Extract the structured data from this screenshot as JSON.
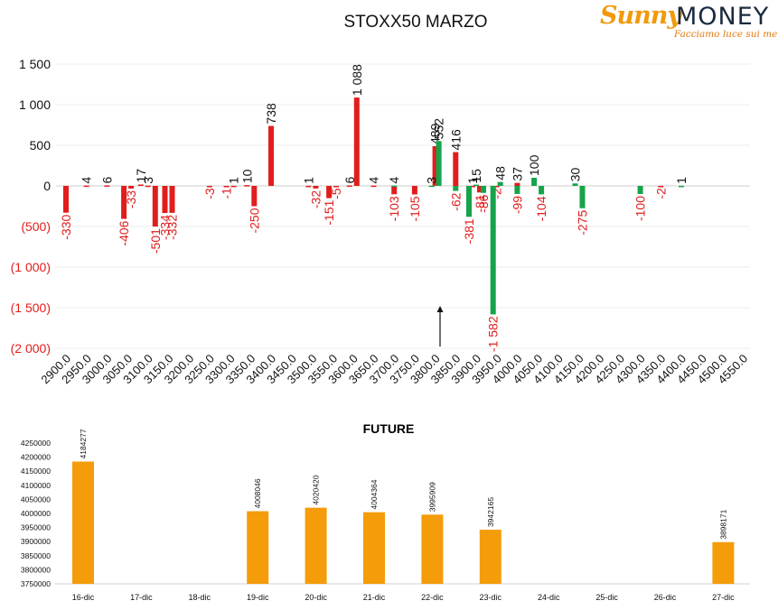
{
  "colors": {
    "positive": "#16a34a",
    "negative": "#e11d1d",
    "future": "#f59c0b",
    "logo_sunny": "#f29a0b",
    "logo_money": "#1a2a40"
  },
  "logo": {
    "sunny": "Sunny",
    "money": "MONEY",
    "tagline": "Facciamo luce sui mercati"
  },
  "chart_data": [
    {
      "type": "bar",
      "title": "STOXX50 MARZO",
      "ylim": [
        -2000,
        1500
      ],
      "yticks": [
        -2000,
        -1500,
        -1000,
        -500,
        0,
        500,
        1000,
        1500
      ],
      "ytick_labels": [
        "(2 000)",
        "(1 500)",
        "(1 000)",
        "(500)",
        "0",
        "500",
        "1 000",
        "1 500"
      ],
      "categories": [
        "2900.0",
        "2950.0",
        "3000.0",
        "3050.0",
        "3100.0",
        "3150.0",
        "3200.0",
        "3250.0",
        "3300.0",
        "3350.0",
        "3400.0",
        "3450.0",
        "3500.0",
        "3550.0",
        "3600.0",
        "3650.0",
        "3700.0",
        "3750.0",
        "3800.0",
        "3850.0",
        "3900.0",
        "3950.0",
        "4000.0",
        "4050.0",
        "4100.0",
        "4150.0",
        "4200.0",
        "4250.0",
        "4300.0",
        "4350.0",
        "4400.0",
        "4450.0",
        "4500.0",
        "4550.0"
      ],
      "series": [
        {
          "color": "negative",
          "points": [
            {
              "x": "2900.0",
              "value": -330,
              "label": "-330"
            },
            {
              "x": "2950.0",
              "value": 4,
              "label": "4"
            },
            {
              "x": "3000.0",
              "value": 6,
              "label": "6"
            },
            {
              "x": "3050.0",
              "value": -406,
              "label": "-406"
            },
            {
              "x": "3050.0",
              "value": -33,
              "label": "-33"
            },
            {
              "x": "3100.0",
              "value": 17,
              "label": "17"
            },
            {
              "x": "3100.0",
              "value": 3,
              "label": "3"
            },
            {
              "x": "3100.0",
              "value": -501,
              "label": "-501"
            },
            {
              "x": "3150.0",
              "value": -334,
              "label": "-334"
            },
            {
              "x": "3150.0",
              "value": -332,
              "label": "-332"
            },
            {
              "x": "3250.0",
              "value": -3,
              "label": "-3"
            },
            {
              "x": "3300.0",
              "value": -1,
              "label": "-1"
            },
            {
              "x": "3300.0",
              "value": 1,
              "label": "1"
            },
            {
              "x": "3350.0",
              "value": 10,
              "label": "10"
            },
            {
              "x": "3350.0",
              "value": -250,
              "label": "-250"
            },
            {
              "x": "3400.0",
              "value": 738,
              "label": "738"
            },
            {
              "x": "3500.0",
              "value": 1,
              "label": "1"
            },
            {
              "x": "3500.0",
              "value": -32,
              "label": "-32"
            },
            {
              "x": "3550.0",
              "value": -151,
              "label": "-151"
            },
            {
              "x": "3550.0",
              "value": -5,
              "label": "-5"
            },
            {
              "x": "3600.0",
              "value": 6,
              "label": "6"
            },
            {
              "x": "3600.0",
              "value": 1088,
              "label": "1 088"
            },
            {
              "x": "3650.0",
              "value": 4,
              "label": "4"
            },
            {
              "x": "3700.0",
              "value": -103,
              "label": "-103"
            },
            {
              "x": "3750.0",
              "value": -105,
              "label": "-105"
            },
            {
              "x": "3800.0",
              "value": 489,
              "label": "489"
            },
            {
              "x": "3850.0",
              "value": 416,
              "label": "416"
            },
            {
              "x": "3900.0",
              "value": 1,
              "label": "1"
            },
            {
              "x": "3900.0",
              "value": -81,
              "label": "-81"
            },
            {
              "x": "3950.0",
              "value": -2,
              "label": "-2"
            },
            {
              "x": "4000.0",
              "value": 37,
              "label": "37"
            },
            {
              "x": "4350.0",
              "value": -2,
              "label": "-2"
            }
          ]
        },
        {
          "color": "positive",
          "points": [
            {
              "x": "3700.0",
              "value": 4,
              "label": "4"
            },
            {
              "x": "3800.0",
              "value": 3,
              "label": "3"
            },
            {
              "x": "3800.0",
              "value": 552,
              "label": "552"
            },
            {
              "x": "3850.0",
              "value": -62,
              "label": "-62"
            },
            {
              "x": "3900.0",
              "value": -381,
              "label": "-381"
            },
            {
              "x": "3900.0",
              "value": 15,
              "label": "15"
            },
            {
              "x": "3900.0",
              "value": -86,
              "label": "-86"
            },
            {
              "x": "3950.0",
              "value": -1582,
              "label": "-1 582"
            },
            {
              "x": "3950.0",
              "value": 48,
              "label": "48"
            },
            {
              "x": "4000.0",
              "value": -99,
              "label": "-99"
            },
            {
              "x": "4050.0",
              "value": 100,
              "label": "100"
            },
            {
              "x": "4050.0",
              "value": -104,
              "label": "-104"
            },
            {
              "x": "4150.0",
              "value": 30,
              "label": "30"
            },
            {
              "x": "4150.0",
              "value": -275,
              "label": "-275"
            },
            {
              "x": "4300.0",
              "value": -100,
              "label": "-100"
            },
            {
              "x": "4400.0",
              "value": 1,
              "label": "1"
            }
          ]
        }
      ],
      "annotation": "arrow pointing up near 3800.0"
    },
    {
      "type": "bar",
      "title": "FUTURE",
      "ylim": [
        3750000,
        4250000
      ],
      "yticks": [
        3750000,
        3800000,
        3850000,
        3900000,
        3950000,
        4000000,
        4050000,
        4100000,
        4150000,
        4200000,
        4250000
      ],
      "categories": [
        "16-dic",
        "17-dic",
        "18-dic",
        "19-dic",
        "20-dic",
        "21-dic",
        "22-dic",
        "23-dic",
        "24-dic",
        "25-dic",
        "26-dic",
        "27-dic"
      ],
      "values": [
        4184277,
        null,
        null,
        4008046,
        4020420,
        4004364,
        3995909,
        3942165,
        null,
        null,
        null,
        3898171
      ],
      "labels": [
        "4184277",
        "",
        "",
        "4008046",
        "4020420",
        "4004364",
        "3995909",
        "3942165",
        "",
        "",
        "",
        "3898171"
      ],
      "color": "future"
    }
  ]
}
